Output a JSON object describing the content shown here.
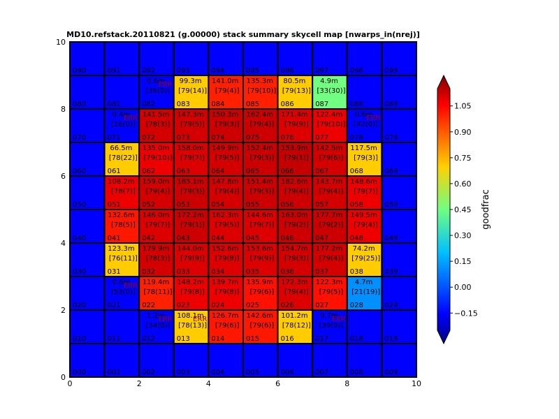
{
  "chart_data": {
    "type": "heatmap",
    "title": "MD10.refstack.20110821 (g.00000) stack summary skycell map [nwarps_in(nrej)]",
    "xlim": [
      0,
      10
    ],
    "ylim": [
      0,
      10
    ],
    "x_ticks": [
      "0",
      "2",
      "4",
      "6",
      "8",
      "10"
    ],
    "y_ticks": [
      "0",
      "2",
      "4",
      "6",
      "8",
      "10"
    ],
    "colorbar": {
      "label": "goodfrac",
      "range": [
        -0.25,
        1.15
      ],
      "ticks": [
        "1.05",
        "0.90",
        "0.75",
        "0.60",
        "0.45",
        "0.30",
        "0.15",
        "0.00",
        "−0.15"
      ]
    },
    "empty_color": "#0000ff",
    "cells": [
      {
        "col": 0,
        "row": 0,
        "id": "000"
      },
      {
        "col": 1,
        "row": 0,
        "id": "001"
      },
      {
        "col": 2,
        "row": 0,
        "id": "002"
      },
      {
        "col": 3,
        "row": 0,
        "id": "003"
      },
      {
        "col": 4,
        "row": 0,
        "id": "004"
      },
      {
        "col": 5,
        "row": 0,
        "id": "005"
      },
      {
        "col": 6,
        "row": 0,
        "id": "006"
      },
      {
        "col": 7,
        "row": 0,
        "id": "007"
      },
      {
        "col": 8,
        "row": 0,
        "id": "008"
      },
      {
        "col": 9,
        "row": 0,
        "id": "009"
      },
      {
        "col": 0,
        "row": 1,
        "id": "010"
      },
      {
        "col": 1,
        "row": 1,
        "id": "011"
      },
      {
        "col": 2,
        "row": 1,
        "id": "012",
        "l1": "1.2m",
        "l2": "[34(0)]",
        "err": "ERR",
        "color": "#0000ff"
      },
      {
        "col": 3,
        "row": 1,
        "id": "013",
        "l1": "108.1m",
        "l2": "[78(13)]",
        "err": "ERR",
        "color": "#ffcc00"
      },
      {
        "col": 4,
        "row": 1,
        "id": "014",
        "l1": "126.7m",
        "l2": "[79(6)]",
        "color": "#ff1800"
      },
      {
        "col": 5,
        "row": 1,
        "id": "015",
        "l1": "142.6m",
        "l2": "[79(6)]",
        "color": "#ff1800"
      },
      {
        "col": 6,
        "row": 1,
        "id": "016",
        "l1": "101.2m",
        "l2": "[78(12)]",
        "color": "#ffcc00"
      },
      {
        "col": 7,
        "row": 1,
        "id": "017",
        "l1": "0.7m",
        "l2": "[39(0)]",
        "err": "ERR",
        "color": "#0000ff"
      },
      {
        "col": 8,
        "row": 1,
        "id": "018"
      },
      {
        "col": 9,
        "row": 1,
        "id": "019"
      },
      {
        "col": 0,
        "row": 2,
        "id": "020"
      },
      {
        "col": 1,
        "row": 2,
        "id": "021",
        "l1": "0.6m",
        "l2": "[53(0)]",
        "err": "ERR",
        "color": "#0000ff"
      },
      {
        "col": 2,
        "row": 2,
        "id": "022",
        "l1": "119.4m",
        "l2": "[78(11)]",
        "color": "#ff2000"
      },
      {
        "col": 3,
        "row": 2,
        "id": "023",
        "l1": "148.2m",
        "l2": "[79(8)]",
        "color": "#ee0000"
      },
      {
        "col": 4,
        "row": 2,
        "id": "024",
        "l1": "139.7m",
        "l2": "[79(8)]",
        "color": "#ee0000"
      },
      {
        "col": 5,
        "row": 2,
        "id": "025",
        "l1": "135.9m",
        "l2": "[79(6)]",
        "color": "#ff1000"
      },
      {
        "col": 6,
        "row": 2,
        "id": "026",
        "l1": "172.3m",
        "l2": "[79(4)]",
        "color": "#dd0000"
      },
      {
        "col": 7,
        "row": 2,
        "id": "027",
        "l1": "122.3m",
        "l2": "[79(5)]",
        "color": "#ff1000"
      },
      {
        "col": 8,
        "row": 2,
        "id": "028",
        "l1": "4.7m",
        "l2": "[21(19)]",
        "color": "#0090ff"
      },
      {
        "col": 9,
        "row": 2,
        "id": "029"
      },
      {
        "col": 0,
        "row": 3,
        "id": "030"
      },
      {
        "col": 1,
        "row": 3,
        "id": "031",
        "l1": "123.3m",
        "l2": "[76(11)]",
        "color": "#ffcc00"
      },
      {
        "col": 2,
        "row": 3,
        "id": "032",
        "l1": "179.9m",
        "l2": "[78(3)]",
        "color": "#d40000"
      },
      {
        "col": 3,
        "row": 3,
        "id": "033",
        "l1": "144.0m",
        "l2": "[79(9)]",
        "color": "#dd0000"
      },
      {
        "col": 4,
        "row": 3,
        "id": "034",
        "l1": "152.6m",
        "l2": "[79(8)]",
        "color": "#dd0000"
      },
      {
        "col": 5,
        "row": 3,
        "id": "035",
        "l1": "153.6m",
        "l2": "[79(9)]",
        "color": "#dd0000"
      },
      {
        "col": 6,
        "row": 3,
        "id": "036",
        "l1": "154.7m",
        "l2": "[79(3)]",
        "color": "#d40000"
      },
      {
        "col": 7,
        "row": 3,
        "id": "037",
        "l1": "177.2m",
        "l2": "[79(4)]",
        "color": "#d40000"
      },
      {
        "col": 8,
        "row": 3,
        "id": "038",
        "l1": "74.2m",
        "l2": "[79(25)]",
        "color": "#ffcc00"
      },
      {
        "col": 9,
        "row": 3,
        "id": "039"
      },
      {
        "col": 0,
        "row": 4,
        "id": "040"
      },
      {
        "col": 1,
        "row": 4,
        "id": "041",
        "l1": "132.6m",
        "l2": "[78(5)]",
        "color": "#ff1800"
      },
      {
        "col": 2,
        "row": 4,
        "id": "042",
        "l1": "146.0m",
        "l2": "[79(7)]",
        "color": "#dd0000"
      },
      {
        "col": 3,
        "row": 4,
        "id": "043",
        "l1": "172.2m",
        "l2": "[79(1)]",
        "color": "#cc0000"
      },
      {
        "col": 4,
        "row": 4,
        "id": "044",
        "l1": "162.3m",
        "l2": "[79(5)]",
        "color": "#dd0000"
      },
      {
        "col": 5,
        "row": 4,
        "id": "045",
        "l1": "144.6m",
        "l2": "[79(7)]",
        "color": "#dd0000"
      },
      {
        "col": 6,
        "row": 4,
        "id": "046",
        "l1": "163.0m",
        "l2": "[79(2)]",
        "color": "#cc0000"
      },
      {
        "col": 7,
        "row": 4,
        "id": "047",
        "l1": "177.7m",
        "l2": "[79(2)]",
        "color": "#cc0000"
      },
      {
        "col": 8,
        "row": 4,
        "id": "048",
        "l1": "149.5m",
        "l2": "[79(4)]",
        "color": "#ee0000"
      },
      {
        "col": 9,
        "row": 4,
        "id": "049"
      },
      {
        "col": 0,
        "row": 5,
        "id": "050"
      },
      {
        "col": 1,
        "row": 5,
        "id": "051",
        "l1": "108.2m",
        "l2": "[78(7)]",
        "color": "#ee0000"
      },
      {
        "col": 2,
        "row": 5,
        "id": "052",
        "l1": "159.0m",
        "l2": "[79(4)]",
        "color": "#d40000"
      },
      {
        "col": 3,
        "row": 5,
        "id": "053",
        "l1": "185.1m",
        "l2": "[79(3)]",
        "color": "#cc0000"
      },
      {
        "col": 4,
        "row": 5,
        "id": "054",
        "l1": "147.8m",
        "l2": "[79(4)]",
        "color": "#d40000"
      },
      {
        "col": 5,
        "row": 5,
        "id": "055",
        "l1": "151.4m",
        "l2": "[79(3)]",
        "color": "#cc0000"
      },
      {
        "col": 6,
        "row": 5,
        "id": "056",
        "l1": "182.6m",
        "l2": "[79(4)]",
        "color": "#cc0000"
      },
      {
        "col": 7,
        "row": 5,
        "id": "057",
        "l1": "143.7m",
        "l2": "[79(4)]",
        "color": "#d40000"
      },
      {
        "col": 8,
        "row": 5,
        "id": "058",
        "l1": "148.6m",
        "l2": "[79(7)]",
        "color": "#ee0000"
      },
      {
        "col": 9,
        "row": 5,
        "id": "059"
      },
      {
        "col": 0,
        "row": 6,
        "id": "060"
      },
      {
        "col": 1,
        "row": 6,
        "id": "061",
        "l1": "66.5m",
        "l2": "[78(22)]",
        "color": "#ffcc00"
      },
      {
        "col": 2,
        "row": 6,
        "id": "062",
        "l1": "135.0m",
        "l2": "[79(10)]",
        "color": "#ee0000"
      },
      {
        "col": 3,
        "row": 6,
        "id": "063",
        "l1": "158.0m",
        "l2": "[79(7)]",
        "color": "#dd0000"
      },
      {
        "col": 4,
        "row": 6,
        "id": "064",
        "l1": "149.9m",
        "l2": "[79(5)]",
        "color": "#d40000"
      },
      {
        "col": 5,
        "row": 6,
        "id": "065",
        "l1": "152.4m",
        "l2": "[79(3)]",
        "color": "#cc0000"
      },
      {
        "col": 6,
        "row": 6,
        "id": "066",
        "l1": "153.9m",
        "l2": "[79(1)]",
        "color": "#c40000"
      },
      {
        "col": 7,
        "row": 6,
        "id": "067",
        "l1": "142.5m",
        "l2": "[79(6)]",
        "color": "#d40000"
      },
      {
        "col": 8,
        "row": 6,
        "id": "068",
        "l1": "117.5m",
        "l2": "[79(3)]",
        "color": "#ffcc00"
      },
      {
        "col": 9,
        "row": 6,
        "id": "069"
      },
      {
        "col": 0,
        "row": 7,
        "id": "070"
      },
      {
        "col": 1,
        "row": 7,
        "id": "071",
        "l1": "0.4m",
        "l2": "[16(0)]",
        "err": "ERR",
        "color": "#0000ff"
      },
      {
        "col": 2,
        "row": 7,
        "id": "072",
        "l1": "141.5m",
        "l2": "[78(3)]",
        "color": "#d40000"
      },
      {
        "col": 3,
        "row": 7,
        "id": "073",
        "l1": "147.3m",
        "l2": "[79(5)]",
        "color": "#d40000"
      },
      {
        "col": 4,
        "row": 7,
        "id": "074",
        "l1": "150.3m",
        "l2": "[79(3)]",
        "color": "#cc0000"
      },
      {
        "col": 5,
        "row": 7,
        "id": "075",
        "l1": "162.4m",
        "l2": "[79(4)]",
        "color": "#cc0000"
      },
      {
        "col": 6,
        "row": 7,
        "id": "076",
        "l1": "171.4m",
        "l2": "[79(9)]",
        "color": "#dd0000"
      },
      {
        "col": 7,
        "row": 7,
        "id": "077",
        "l1": "122.4m",
        "l2": "[79(10)]",
        "color": "#ee0000"
      },
      {
        "col": 8,
        "row": 7,
        "id": "078",
        "l1": "0.6m",
        "l2": "[42(0)]",
        "err": "ERR",
        "color": "#0000ff"
      },
      {
        "col": 9,
        "row": 7,
        "id": "079"
      },
      {
        "col": 0,
        "row": 8,
        "id": "080"
      },
      {
        "col": 1,
        "row": 8,
        "id": "081"
      },
      {
        "col": 2,
        "row": 8,
        "id": "082",
        "l1": "0.6m",
        "l2": "[36(0)]",
        "err": "ERR",
        "color": "#0000ff"
      },
      {
        "col": 3,
        "row": 8,
        "id": "083",
        "l1": "99.3m",
        "l2": "[79(14)]",
        "color": "#ffcc00"
      },
      {
        "col": 4,
        "row": 8,
        "id": "084",
        "l1": "141.0m",
        "l2": "[79(4)]",
        "color": "#ff2000"
      },
      {
        "col": 5,
        "row": 8,
        "id": "085",
        "l1": "135.3m",
        "l2": "[79(10)]",
        "color": "#ff2000"
      },
      {
        "col": 6,
        "row": 8,
        "id": "086",
        "l1": "80.5m",
        "l2": "[79(13)]",
        "color": "#ffcc00"
      },
      {
        "col": 7,
        "row": 8,
        "id": "087",
        "l1": "4.9m",
        "l2": "[33(30)]",
        "color": "#70ff80"
      },
      {
        "col": 8,
        "row": 8,
        "id": "088"
      },
      {
        "col": 9,
        "row": 8,
        "id": "089"
      },
      {
        "col": 0,
        "row": 9,
        "id": "090"
      },
      {
        "col": 1,
        "row": 9,
        "id": "091"
      },
      {
        "col": 2,
        "row": 9,
        "id": "092"
      },
      {
        "col": 3,
        "row": 9,
        "id": "093"
      },
      {
        "col": 4,
        "row": 9,
        "id": "094"
      },
      {
        "col": 5,
        "row": 9,
        "id": "095"
      },
      {
        "col": 6,
        "row": 9,
        "id": "096"
      },
      {
        "col": 7,
        "row": 9,
        "id": "097"
      },
      {
        "col": 8,
        "row": 9,
        "id": "098"
      },
      {
        "col": 9,
        "row": 9,
        "id": "099"
      }
    ]
  }
}
